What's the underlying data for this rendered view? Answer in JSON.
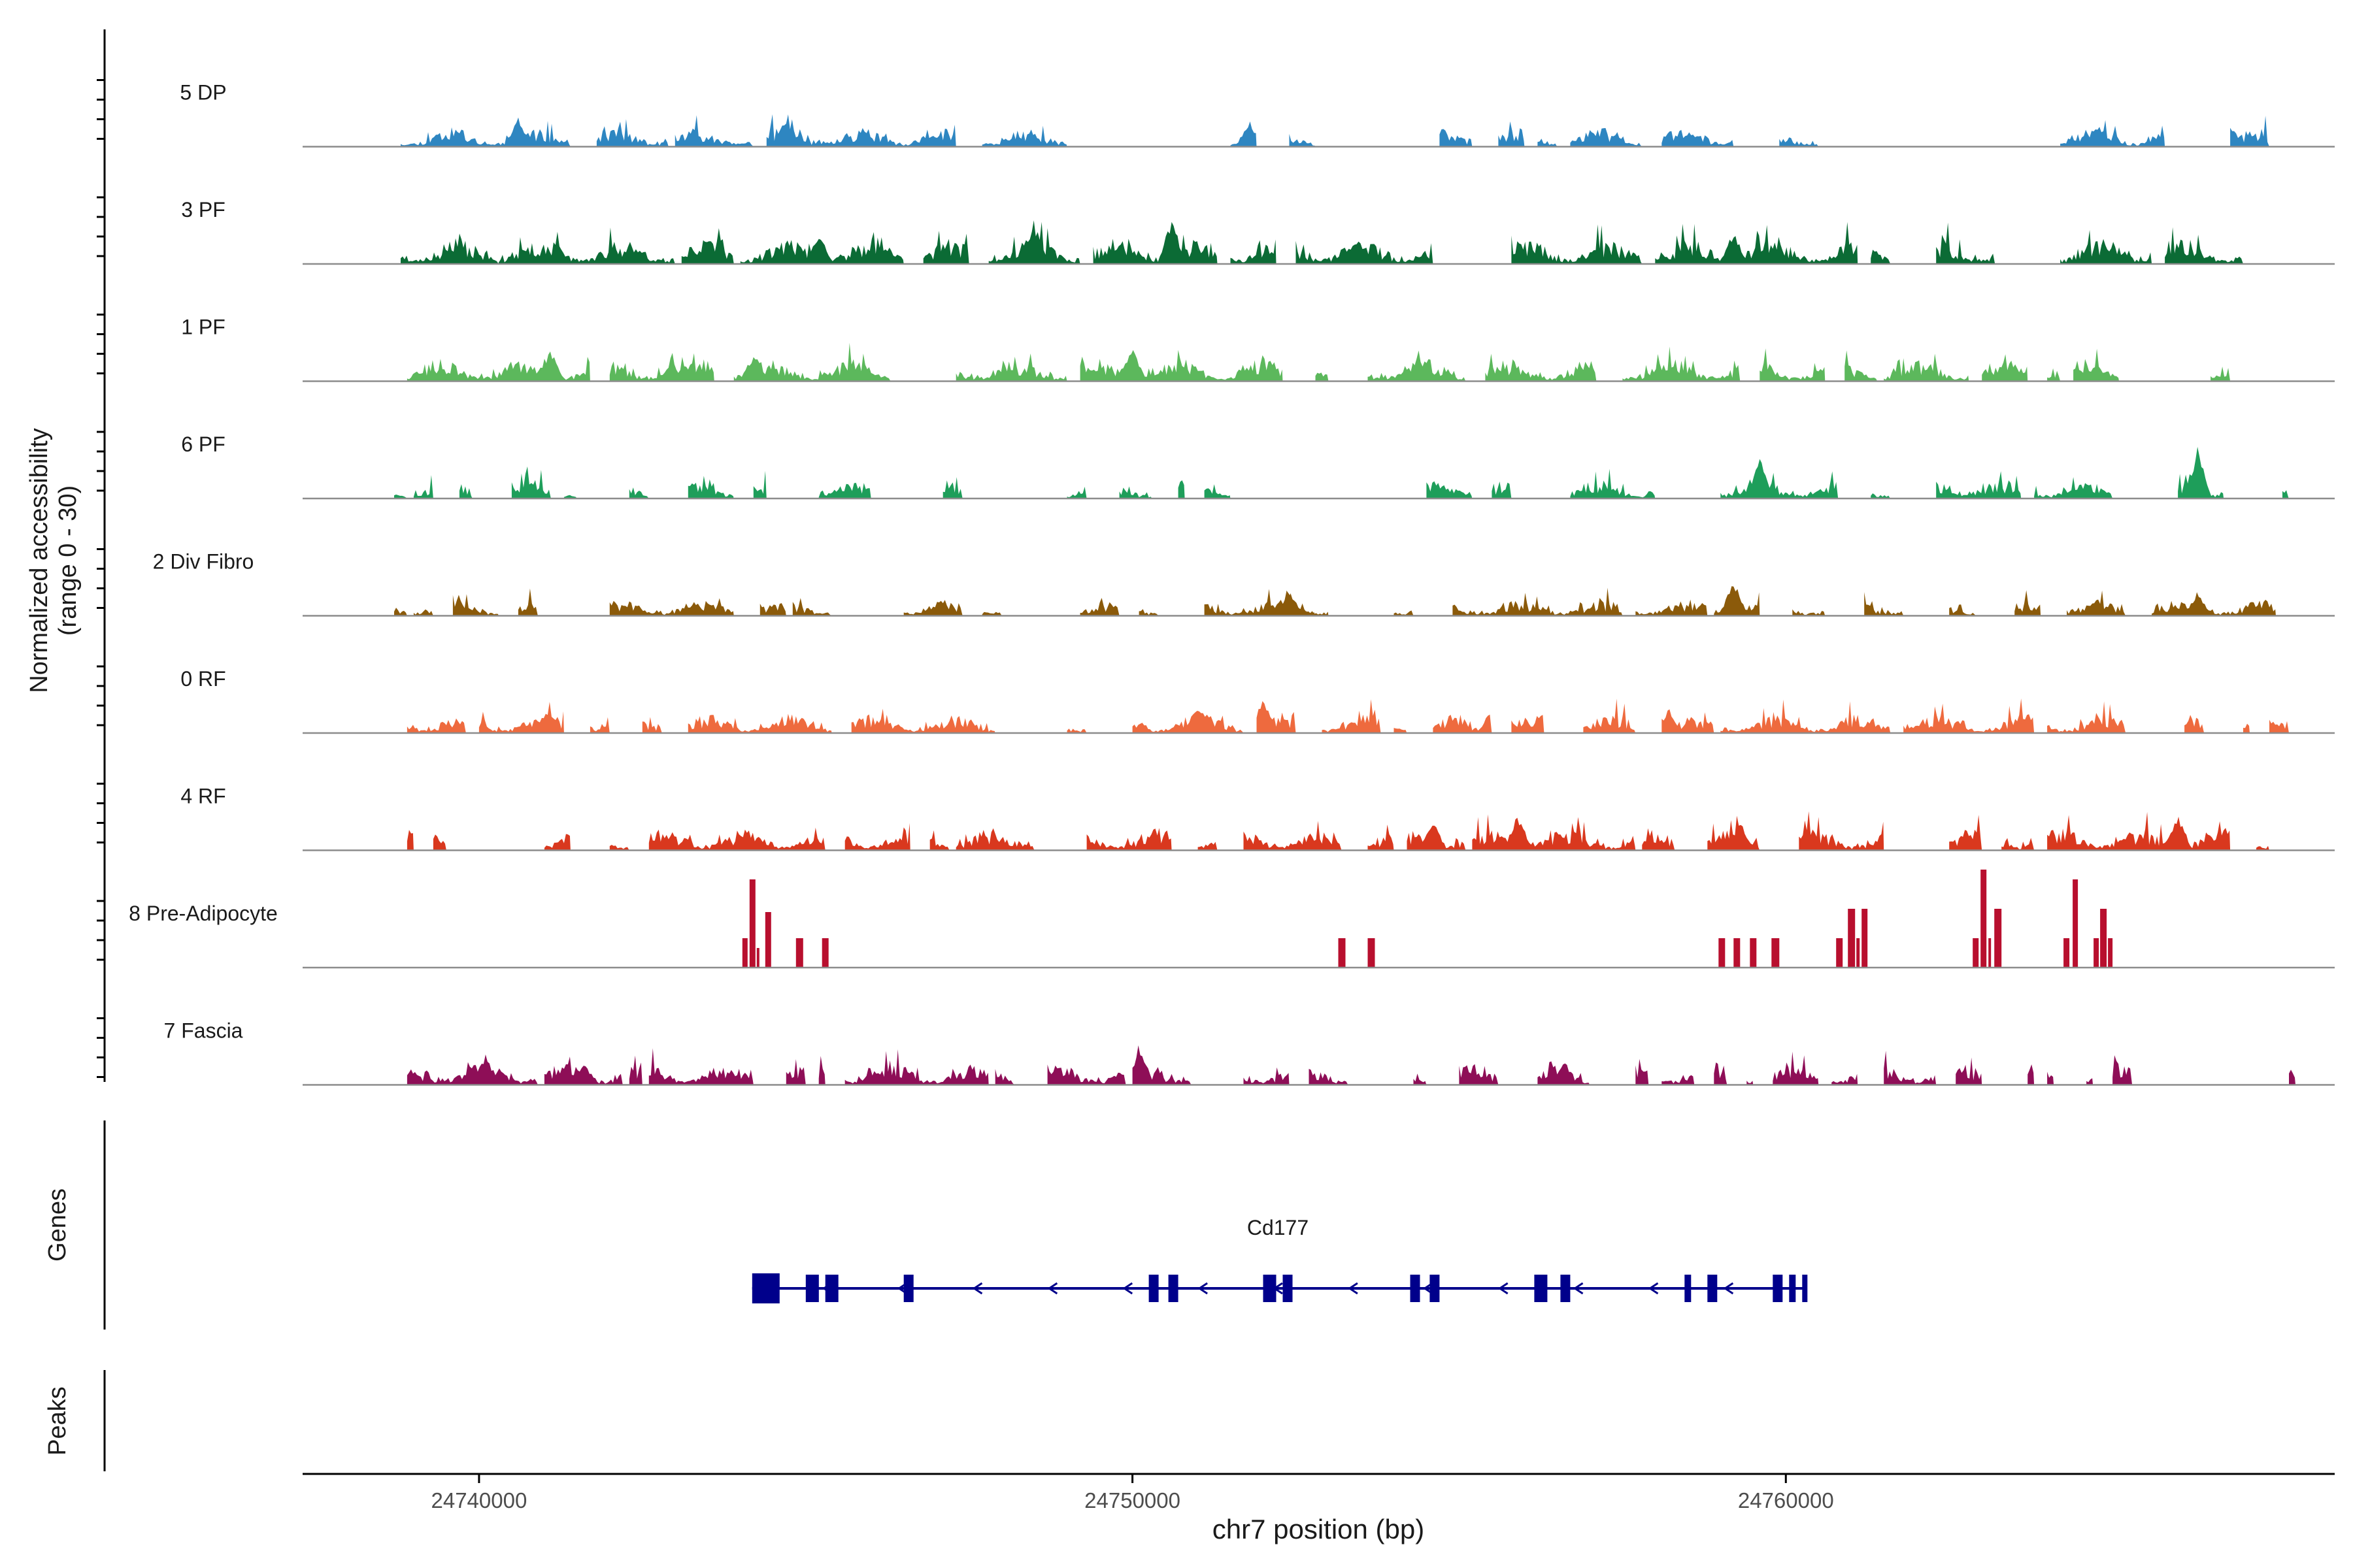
{
  "chart_data": {
    "type": "area",
    "title": "",
    "y_axis_label": "Normalized accessibility",
    "y_axis_sublabel": "(range 0 - 30)",
    "x_axis_label": "chr7 position (bp)",
    "xlim": [
      24737300,
      24768400
    ],
    "ylim": [
      0,
      30
    ],
    "x_ticks": [
      {
        "value": 24740000,
        "label": "24740000"
      },
      {
        "value": 24750000,
        "label": "24750000"
      },
      {
        "value": 24760000,
        "label": "24760000"
      }
    ],
    "tracks": [
      {
        "name": "5 DP",
        "color": "#2E86C1",
        "seed": 11,
        "level": 6,
        "spikes": [
          [
            24740600,
            9
          ],
          [
            24744700,
            9
          ],
          [
            24751800,
            8
          ],
          [
            24764800,
            7
          ],
          [
            24766800,
            7
          ]
        ],
        "regions": [
          [
            24738800,
            24741400
          ],
          [
            24741800,
            24742900
          ],
          [
            24743000,
            24744200
          ],
          [
            24744400,
            24747300
          ],
          [
            24747700,
            24749000
          ],
          [
            24751500,
            24751900
          ],
          [
            24752400,
            24752800
          ],
          [
            24754700,
            24755200
          ],
          [
            24755600,
            24756000
          ],
          [
            24756200,
            24756500
          ],
          [
            24756700,
            24757800
          ],
          [
            24758100,
            24759200
          ],
          [
            24759900,
            24760500
          ],
          [
            24764200,
            24765800
          ],
          [
            24766800,
            24767400
          ]
        ]
      },
      {
        "name": "3 PF",
        "color": "#0B6B35",
        "seed": 23,
        "level": 8,
        "spikes": [
          [
            24748500,
            13
          ],
          [
            24750600,
            15
          ],
          [
            24745200,
            10
          ],
          [
            24759200,
            11
          ]
        ],
        "regions": [
          [
            24738800,
            24740300
          ],
          [
            24740300,
            24743000
          ],
          [
            24743100,
            24743900
          ],
          [
            24744000,
            24746500
          ],
          [
            24746800,
            24747500
          ],
          [
            24747800,
            24749200
          ],
          [
            24749400,
            24751300
          ],
          [
            24751500,
            24752200
          ],
          [
            24752500,
            24754600
          ],
          [
            24755800,
            24757800
          ],
          [
            24758000,
            24761100
          ],
          [
            24761300,
            24761600
          ],
          [
            24762300,
            24763200
          ],
          [
            24764200,
            24765600
          ],
          [
            24765800,
            24767000
          ]
        ]
      },
      {
        "name": "1 PF",
        "color": "#5CB85C",
        "seed": 37,
        "level": 7,
        "spikes": [
          [
            24750000,
            11
          ],
          [
            24741100,
            10
          ],
          [
            24744200,
            9
          ]
        ],
        "regions": [
          [
            24738900,
            24741700
          ],
          [
            24742000,
            24743600
          ],
          [
            24743900,
            24746300
          ],
          [
            24747300,
            24749000
          ],
          [
            24749200,
            24752300
          ],
          [
            24752800,
            24753000
          ],
          [
            24753600,
            24755100
          ],
          [
            24755400,
            24757100
          ],
          [
            24757500,
            24759300
          ],
          [
            24759600,
            24760600
          ],
          [
            24760900,
            24761400
          ],
          [
            24761500,
            24762800
          ],
          [
            24763000,
            24763700
          ],
          [
            24764000,
            24764200
          ],
          [
            24764400,
            24765100
          ],
          [
            24766500,
            24766800
          ]
        ]
      },
      {
        "name": "6 PF",
        "color": "#1E9E5A",
        "seed": 49,
        "level": 6,
        "spikes": [
          [
            24766300,
            16
          ],
          [
            24759600,
            13
          ],
          [
            24744100,
            9
          ]
        ],
        "regions": [
          [
            24738700,
            24738900
          ],
          [
            24739000,
            24739300
          ],
          [
            24739700,
            24739900
          ],
          [
            24740500,
            24741100
          ],
          [
            24741300,
            24741500
          ],
          [
            24742300,
            24742600
          ],
          [
            24743200,
            24743900
          ],
          [
            24744200,
            24744400
          ],
          [
            24745200,
            24746000
          ],
          [
            24747100,
            24747400
          ],
          [
            24749000,
            24749300
          ],
          [
            24749800,
            24750300
          ],
          [
            24750700,
            24750800
          ],
          [
            24751100,
            24751500
          ],
          [
            24754500,
            24755200
          ],
          [
            24755500,
            24755800
          ],
          [
            24756700,
            24758000
          ],
          [
            24759000,
            24760800
          ],
          [
            24761300,
            24761600
          ],
          [
            24762300,
            24763600
          ],
          [
            24763800,
            24765000
          ],
          [
            24766000,
            24766700
          ],
          [
            24767600,
            24767700
          ]
        ]
      },
      {
        "name": "2 Div Fibro",
        "color": "#8B5A0A",
        "seed": 61,
        "level": 5,
        "spikes": [
          [
            24759200,
            12
          ],
          [
            24752400,
            8
          ],
          [
            24766300,
            8
          ]
        ],
        "regions": [
          [
            24738700,
            24738900
          ],
          [
            24739000,
            24739300
          ],
          [
            24739600,
            24740300
          ],
          [
            24740600,
            24740900
          ],
          [
            24742000,
            24743900
          ],
          [
            24744300,
            24744700
          ],
          [
            24744800,
            24745400
          ],
          [
            24746500,
            24747400
          ],
          [
            24747700,
            24748000
          ],
          [
            24749200,
            24749800
          ],
          [
            24750100,
            24750400
          ],
          [
            24751100,
            24753000
          ],
          [
            24752300,
            24752800
          ],
          [
            24754000,
            24754300
          ],
          [
            24754900,
            24757500
          ],
          [
            24757700,
            24758800
          ],
          [
            24758900,
            24759600
          ],
          [
            24760100,
            24760600
          ],
          [
            24761200,
            24761800
          ],
          [
            24762500,
            24762900
          ],
          [
            24763500,
            24763900
          ],
          [
            24764300,
            24765200
          ],
          [
            24765600,
            24767500
          ]
        ]
      },
      {
        "name": "0 RF",
        "color": "#EE6A3E",
        "seed": 73,
        "level": 6,
        "spikes": [
          [
            24752000,
            12
          ],
          [
            24751000,
            10
          ],
          [
            24755500,
            8
          ],
          [
            24758200,
            8
          ]
        ],
        "regions": [
          [
            24738900,
            24739800
          ],
          [
            24740000,
            24741300
          ],
          [
            24741700,
            24742000
          ],
          [
            24742500,
            24742800
          ],
          [
            24743200,
            24745400
          ],
          [
            24745700,
            24747900
          ],
          [
            24749000,
            24749300
          ],
          [
            24750000,
            24751700
          ],
          [
            24751900,
            24752500
          ],
          [
            24752900,
            24753800
          ],
          [
            24754000,
            24754200
          ],
          [
            24754600,
            24755500
          ],
          [
            24755800,
            24756300
          ],
          [
            24756900,
            24757700
          ],
          [
            24758100,
            24758900
          ],
          [
            24759000,
            24761600
          ],
          [
            24761800,
            24763800
          ],
          [
            24764000,
            24765200
          ],
          [
            24766100,
            24766400
          ],
          [
            24767000,
            24767100
          ],
          [
            24767400,
            24767700
          ]
        ]
      },
      {
        "name": "4 RF",
        "color": "#D9381E",
        "seed": 89,
        "level": 7,
        "spikes": [
          [
            24755900,
            12
          ],
          [
            24754600,
            10
          ],
          [
            24759300,
            10
          ],
          [
            24766000,
            12
          ]
        ],
        "regions": [
          [
            24738900,
            24739000
          ],
          [
            24739300,
            24739500
          ],
          [
            24741000,
            24741400
          ],
          [
            24742000,
            24742300
          ],
          [
            24742600,
            24745300
          ],
          [
            24745600,
            24746600
          ],
          [
            24746900,
            24747200
          ],
          [
            24747300,
            24748500
          ],
          [
            24749300,
            24750600
          ],
          [
            24751000,
            24751300
          ],
          [
            24751700,
            24753200
          ],
          [
            24753600,
            24754000
          ],
          [
            24754200,
            24755100
          ],
          [
            24755200,
            24757700
          ],
          [
            24757800,
            24758300
          ],
          [
            24758800,
            24759600
          ],
          [
            24760200,
            24761500
          ],
          [
            24762500,
            24763000
          ],
          [
            24763300,
            24763800
          ],
          [
            24764000,
            24766800
          ],
          [
            24767200,
            24767400
          ]
        ]
      },
      {
        "name": "8 Pre-Adipocyte",
        "color": "#B80F2E",
        "seed": 97,
        "level": 0,
        "spikes": [],
        "regions": [],
        "blocks": [
          [
            24744030,
            24744110,
            9
          ],
          [
            24744140,
            24744230,
            27
          ],
          [
            24744250,
            24744290,
            6
          ],
          [
            24744380,
            24744470,
            17
          ],
          [
            24744850,
            24744960,
            9
          ],
          [
            24745250,
            24745350,
            9
          ],
          [
            24753150,
            24753260,
            9
          ],
          [
            24753600,
            24753710,
            9
          ],
          [
            24758970,
            24759070,
            9
          ],
          [
            24759200,
            24759300,
            9
          ],
          [
            24759450,
            24759550,
            9
          ],
          [
            24759780,
            24759900,
            9
          ],
          [
            24760770,
            24760870,
            9
          ],
          [
            24760950,
            24761060,
            18
          ],
          [
            24761080,
            24761130,
            9
          ],
          [
            24761160,
            24761250,
            18
          ],
          [
            24762860,
            24762950,
            9
          ],
          [
            24762980,
            24763070,
            30
          ],
          [
            24763100,
            24763140,
            9
          ],
          [
            24763190,
            24763300,
            18
          ],
          [
            24764250,
            24764340,
            9
          ],
          [
            24764390,
            24764470,
            27
          ],
          [
            24764710,
            24764790,
            9
          ],
          [
            24764810,
            24764910,
            18
          ],
          [
            24764930,
            24765000,
            9
          ]
        ]
      },
      {
        "name": "7 Fascia",
        "color": "#8E0E57",
        "seed": 103,
        "level": 7,
        "spikes": [
          [
            24740100,
            10
          ],
          [
            24750100,
            12
          ],
          [
            24741600,
            8
          ],
          [
            24756600,
            8
          ]
        ],
        "regions": [
          [
            24738900,
            24740900
          ],
          [
            24741000,
            24742200
          ],
          [
            24742300,
            24742500
          ],
          [
            24742600,
            24744200
          ],
          [
            24744700,
            24745000
          ],
          [
            24745200,
            24745300
          ],
          [
            24745600,
            24747800
          ],
          [
            24747900,
            24748200
          ],
          [
            24748700,
            24749900
          ],
          [
            24750000,
            24750900
          ],
          [
            24751700,
            24752400
          ],
          [
            24752700,
            24753300
          ],
          [
            24754300,
            24754500
          ],
          [
            24755000,
            24755600
          ],
          [
            24756200,
            24757000
          ],
          [
            24757700,
            24757900
          ],
          [
            24758100,
            24758600
          ],
          [
            24758900,
            24759100
          ],
          [
            24759400,
            24759500
          ],
          [
            24759800,
            24760500
          ],
          [
            24760700,
            24761100
          ],
          [
            24761500,
            24762300
          ],
          [
            24762600,
            24763000
          ],
          [
            24763700,
            24763800
          ],
          [
            24764000,
            24764100
          ],
          [
            24764600,
            24764700
          ],
          [
            24765000,
            24765300
          ],
          [
            24767700,
            24767800
          ]
        ]
      }
    ],
    "genes_label": "Genes",
    "peaks_label": "Peaks",
    "gene": {
      "name": "Cd177",
      "start": 24744180,
      "end": 24760270,
      "strand": "-",
      "color": "#00008B",
      "exons": [
        [
          24744180,
          24744600
        ],
        [
          24745000,
          24745200
        ],
        [
          24745300,
          24745500
        ],
        [
          24746500,
          24746650
        ],
        [
          24750250,
          24750400
        ],
        [
          24750550,
          24750700
        ],
        [
          24752000,
          24752200
        ],
        [
          24752300,
          24752450
        ],
        [
          24754250,
          24754400
        ],
        [
          24754550,
          24754700
        ],
        [
          24756150,
          24756350
        ],
        [
          24756550,
          24756700
        ],
        [
          24758450,
          24758550
        ],
        [
          24758800,
          24758950
        ],
        [
          24759800,
          24759950
        ],
        [
          24760050,
          24760150
        ],
        [
          24760250,
          24760290
        ]
      ]
    }
  }
}
